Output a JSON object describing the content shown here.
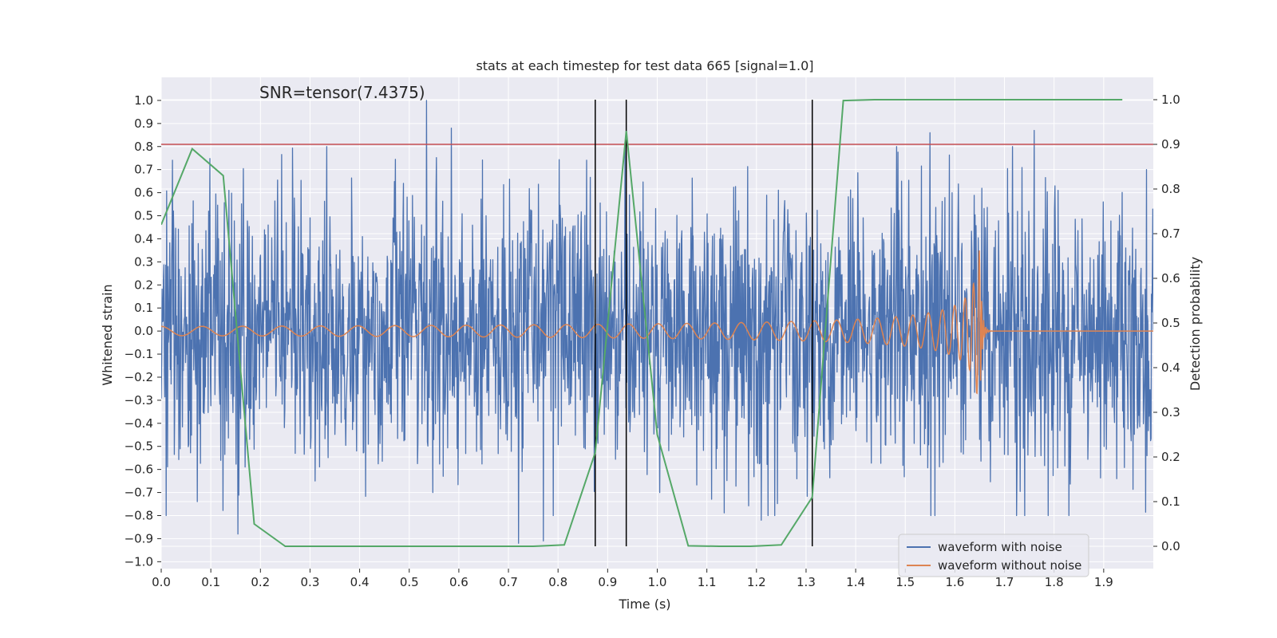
{
  "chart_data": {
    "type": "line",
    "title": "stats at each timestep for test data 665 [signal=1.0]",
    "annotation": "SNR=tensor(7.4375)",
    "xlabel": "Time (s)",
    "ylabel": "Whitened strain",
    "ylabel_right": "Detection probability",
    "xlim": [
      0.0,
      2.0
    ],
    "ylim": [
      -1.03,
      1.1
    ],
    "ylim_right": [
      -0.05,
      1.05
    ],
    "x_ticks": [
      "0.0",
      "0.1",
      "0.2",
      "0.3",
      "0.4",
      "0.5",
      "0.6",
      "0.7",
      "0.8",
      "0.9",
      "1.0",
      "1.1",
      "1.2",
      "1.3",
      "1.4",
      "1.5",
      "1.6",
      "1.7",
      "1.8",
      "1.9"
    ],
    "y_ticks": [
      "1.0",
      "0.9",
      "0.8",
      "0.7",
      "0.6",
      "0.5",
      "0.4",
      "0.3",
      "0.2",
      "0.1",
      "0.0",
      "−0.1",
      "−0.2",
      "−0.3",
      "−0.4",
      "−0.5",
      "−0.6",
      "−0.7",
      "−0.8",
      "−0.9",
      "−1.0"
    ],
    "y_ticks_right": [
      "1.0",
      "0.9",
      "0.8",
      "0.7",
      "0.6",
      "0.5",
      "0.4",
      "0.3",
      "0.2",
      "0.1",
      "0.0"
    ],
    "legend": [
      "waveform with noise",
      "waveform without noise"
    ],
    "colors": {
      "noise": "#4c72b0",
      "signal": "#dd8452",
      "probability": "#55a868",
      "threshold": "#c44e52",
      "markers": "#000000",
      "panel": "#eaeaf2",
      "grid": "#ffffff"
    },
    "threshold": 0.9,
    "vertical_markers": [
      0.875,
      0.9375,
      1.3125
    ],
    "noise_amplitude": 0.3,
    "noise_peaks": [
      {
        "x": 0.535,
        "y": 1.0
      },
      {
        "x": 0.585,
        "y": 0.88
      },
      {
        "x": 0.935,
        "y": 0.82
      },
      {
        "x": 1.55,
        "y": 0.86
      },
      {
        "x": 1.76,
        "y": 0.87
      },
      {
        "x": 0.72,
        "y": -0.92
      },
      {
        "x": 0.77,
        "y": -0.91
      },
      {
        "x": 0.155,
        "y": -0.88
      },
      {
        "x": 1.21,
        "y": -0.82
      },
      {
        "x": 0.01,
        "y": -0.8
      }
    ],
    "signal_model": {
      "merger_time": 1.65,
      "start_amplitude": 0.02,
      "peak_amplitude": 0.35,
      "start_frequency": 12
    },
    "series": [
      {
        "name": "detection probability",
        "axis": "right",
        "x": [
          0.0,
          0.0625,
          0.125,
          0.1875,
          0.25,
          0.3125,
          0.375,
          0.4375,
          0.5,
          0.5625,
          0.625,
          0.6875,
          0.75,
          0.8125,
          0.875,
          0.9375,
          1.0,
          1.0625,
          1.125,
          1.1875,
          1.25,
          1.3125,
          1.375,
          1.4375,
          1.5,
          1.5625,
          1.625,
          1.6875,
          1.75,
          1.8125,
          1.875,
          1.9375
        ],
        "values": [
          0.72,
          0.89,
          0.83,
          0.05,
          0.0,
          0.0,
          0.0,
          0.0,
          0.0,
          0.0,
          0.0,
          0.0,
          0.0,
          0.003,
          0.21,
          0.93,
          0.25,
          0.001,
          0.0,
          0.0,
          0.003,
          0.11,
          0.998,
          1.0,
          1.0,
          1.0,
          1.0,
          1.0,
          1.0,
          1.0,
          1.0,
          1.0
        ]
      }
    ]
  }
}
